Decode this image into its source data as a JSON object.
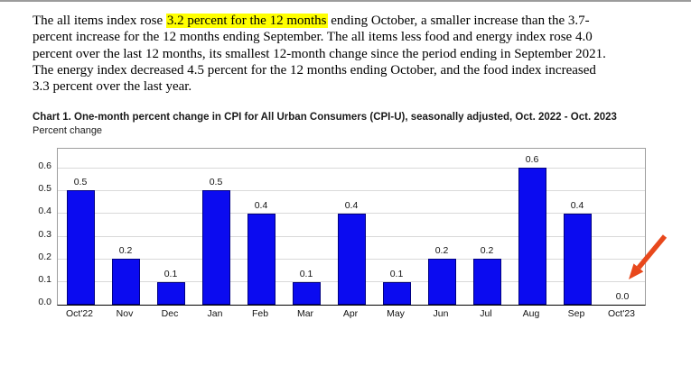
{
  "page": {
    "highlight_color": "#ffff00",
    "paragraph": {
      "pre": "The all items index rose ",
      "highlight": "3.2 percent for the 12 months",
      "post": " ending October, a smaller increase than the 3.7-percent increase for the 12 months ending September. The all items less food and energy index rose 4.0 percent over the last 12 months, its smallest 12-month change since the period ending in September 2021. The energy index decreased 4.5 percent for the 12 months ending October, and the food index increased 3.3 percent over the last year."
    }
  },
  "chart_data": {
    "type": "bar",
    "title": "Chart 1. One-month percent change in CPI for All Urban Consumers (CPI-U), seasonally adjusted, Oct. 2022 - Oct. 2023",
    "subtitle": "Percent change",
    "categories": [
      "Oct'22",
      "Nov",
      "Dec",
      "Jan",
      "Feb",
      "Mar",
      "Apr",
      "May",
      "Jun",
      "Jul",
      "Aug",
      "Sep",
      "Oct'23"
    ],
    "values": [
      0.5,
      0.2,
      0.1,
      0.5,
      0.4,
      0.1,
      0.4,
      0.1,
      0.2,
      0.2,
      0.6,
      0.4,
      0.0
    ],
    "yticks": [
      0.0,
      0.1,
      0.2,
      0.3,
      0.4,
      0.5,
      0.6
    ],
    "ylim": [
      0,
      0.68
    ],
    "grid": true,
    "legend": "none",
    "bar_color": "#0b0bf0",
    "bar_border_color": "#000080",
    "gridline_color": "#d9d9d9",
    "annotation": {
      "type": "arrow",
      "color": "#e8481c",
      "points_at": "Oct'23 0.0 value"
    }
  }
}
